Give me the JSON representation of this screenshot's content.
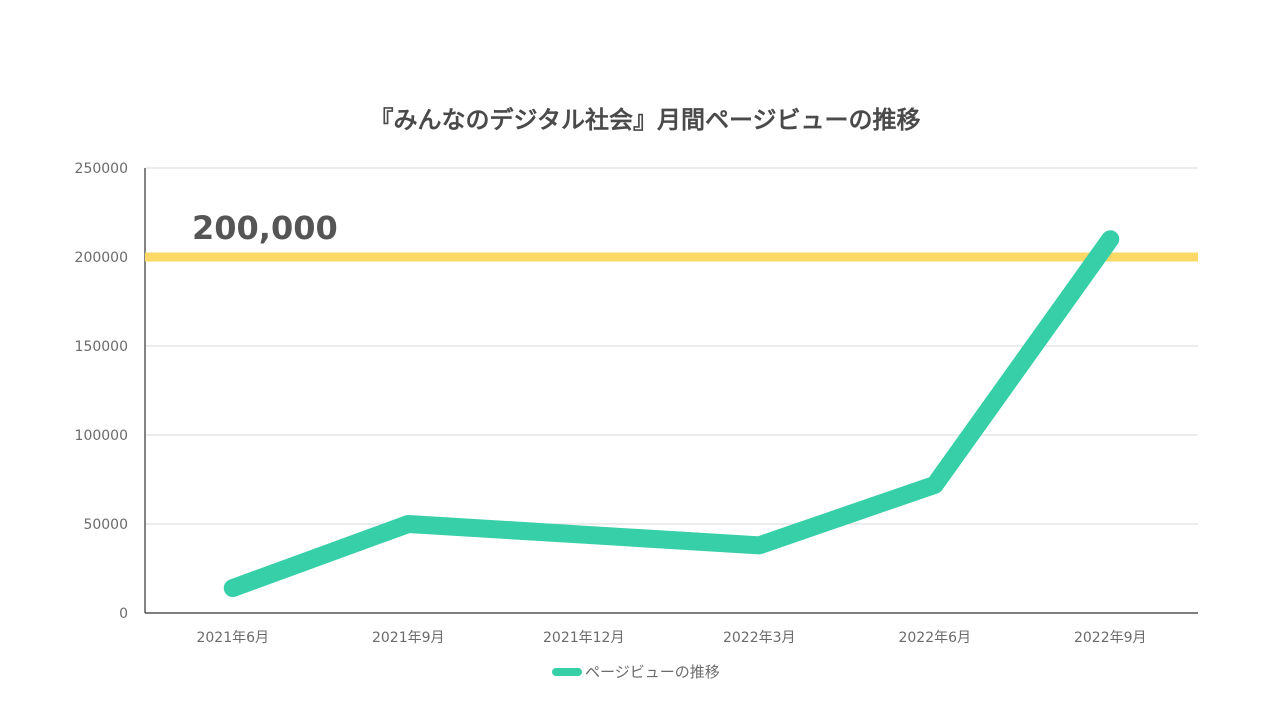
{
  "chart_data": {
    "type": "line",
    "title": "『みんなのデジタル社会』月間ページビューの推移",
    "xlabel": "",
    "ylabel": "",
    "categories": [
      "2021年6月",
      "2021年9月",
      "2021年12月",
      "2022年3月",
      "2022年6月",
      "2022年9月"
    ],
    "series": [
      {
        "name": "ページビューの推移",
        "values": [
          14000,
          50000,
          44000,
          38000,
          72000,
          210000
        ]
      }
    ],
    "ylim": [
      0,
      250000
    ],
    "yticks": [
      "0",
      "50000",
      "100000",
      "150000",
      "200000",
      "250000"
    ],
    "grid": true,
    "reference_line": {
      "value": 200000,
      "label": "200,000"
    },
    "legend": "bottom",
    "colors": {
      "series": "#36cfa8",
      "reference": "#fcd966",
      "grid": "#d9d9d9",
      "axis": "#333333"
    }
  }
}
